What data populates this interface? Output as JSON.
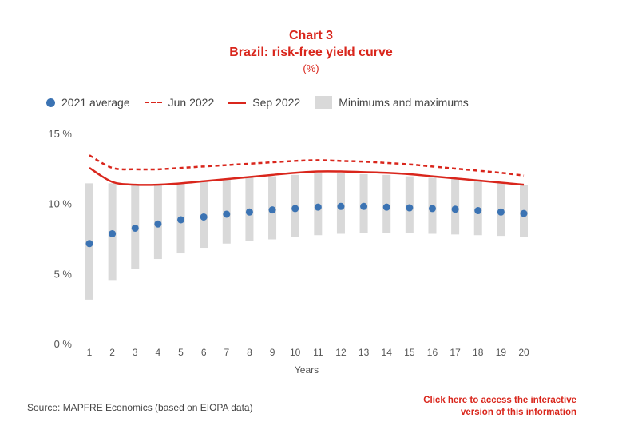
{
  "title": "Chart 3",
  "subtitle": "Brazil: risk-free yield curve",
  "unit": "(%)",
  "legend": {
    "avg2021": "2021 average",
    "jun2022": "Jun 2022",
    "sep2022": "Sep 2022",
    "minmax": "Minimums and maximums"
  },
  "source": "Source: MAPFRE Economics (based on EIOPA data)",
  "link": {
    "line1": "Click here to access the interactive",
    "line2": "version of this information"
  },
  "colors": {
    "accent": "#d9261c",
    "dot": "#3b73b3",
    "band": "#d9d9d9",
    "axis_text": "#555555"
  },
  "chart_data": {
    "type": "line",
    "xlabel": "Years",
    "ylabel": "",
    "x": [
      1,
      2,
      3,
      4,
      5,
      6,
      7,
      8,
      9,
      10,
      11,
      12,
      13,
      14,
      15,
      16,
      17,
      18,
      19,
      20
    ],
    "ylim": [
      0,
      15
    ],
    "yticks": [
      0,
      5,
      10,
      15
    ],
    "ytick_labels": [
      "0 %",
      "5 %",
      "10 %",
      "15 %"
    ],
    "series": [
      {
        "name": "2021 average",
        "type": "scatter",
        "values": [
          7.2,
          7.9,
          8.3,
          8.6,
          8.9,
          9.1,
          9.3,
          9.45,
          9.6,
          9.7,
          9.8,
          9.85,
          9.85,
          9.8,
          9.75,
          9.7,
          9.65,
          9.55,
          9.45,
          9.35
        ]
      },
      {
        "name": "Jun 2022",
        "type": "line-dashed",
        "values": [
          13.5,
          12.6,
          12.5,
          12.5,
          12.6,
          12.7,
          12.8,
          12.9,
          13.0,
          13.1,
          13.15,
          13.1,
          13.05,
          12.95,
          12.85,
          12.7,
          12.55,
          12.4,
          12.25,
          12.05
        ]
      },
      {
        "name": "Sep 2022",
        "type": "line",
        "values": [
          12.6,
          11.6,
          11.4,
          11.4,
          11.5,
          11.65,
          11.8,
          11.95,
          12.1,
          12.25,
          12.35,
          12.35,
          12.3,
          12.25,
          12.15,
          12.0,
          11.85,
          11.7,
          11.55,
          11.4
        ]
      },
      {
        "name": "Minimums and maximums",
        "type": "range",
        "min": [
          3.2,
          4.6,
          5.4,
          6.1,
          6.5,
          6.9,
          7.2,
          7.4,
          7.5,
          7.7,
          7.8,
          7.9,
          7.95,
          7.95,
          7.95,
          7.9,
          7.85,
          7.8,
          7.75,
          7.7
        ],
        "max": [
          11.5,
          11.5,
          11.4,
          11.4,
          11.5,
          11.6,
          11.8,
          11.9,
          12.0,
          12.1,
          12.2,
          12.2,
          12.15,
          12.1,
          12.0,
          11.9,
          11.8,
          11.7,
          11.55,
          11.4
        ]
      }
    ],
    "grid": false,
    "legend_position": "top-left"
  }
}
